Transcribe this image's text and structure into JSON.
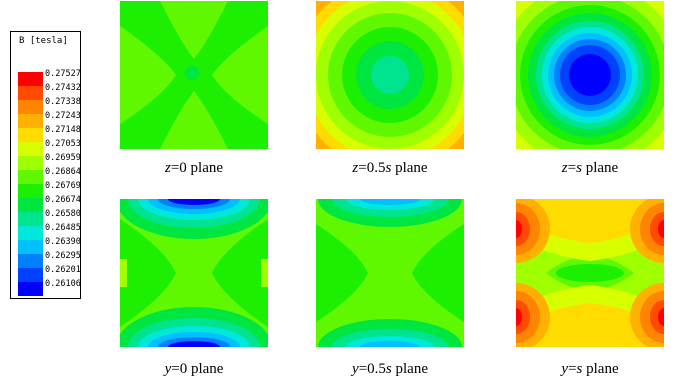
{
  "legend": {
    "title": "B [tesla]",
    "colors": [
      "#ff0000",
      "#ff4a00",
      "#ff8400",
      "#ffb000",
      "#ffdc00",
      "#d8ff00",
      "#a0ff00",
      "#60f800",
      "#1cf000",
      "#00e640",
      "#00e490",
      "#00e8dc",
      "#00c0ff",
      "#0080ff",
      "#0040ff",
      "#0000ff"
    ],
    "labels": [
      "0.27527",
      "0.27432",
      "0.27338",
      "0.27243",
      "0.27148",
      "0.27053",
      "0.26959",
      "0.26864",
      "0.26769",
      "0.26674",
      "0.26580",
      "0.26485",
      "0.26390",
      "0.26295",
      "0.26201",
      "0.26106"
    ]
  },
  "plots": [
    {
      "var": "z",
      "eq": "=0",
      "param": "",
      "suffix": " plane"
    },
    {
      "var": "z",
      "eq": "=0.5",
      "param": "s",
      "suffix": " plane"
    },
    {
      "var": "z",
      "eq": "=",
      "param": "s",
      "suffix": " plane"
    },
    {
      "var": "y",
      "eq": "=0",
      "param": "",
      "suffix": " plane"
    },
    {
      "var": "y",
      "eq": "=0.5",
      "param": "s",
      "suffix": " plane"
    },
    {
      "var": "y",
      "eq": "=",
      "param": "s",
      "suffix": " plane"
    }
  ]
}
